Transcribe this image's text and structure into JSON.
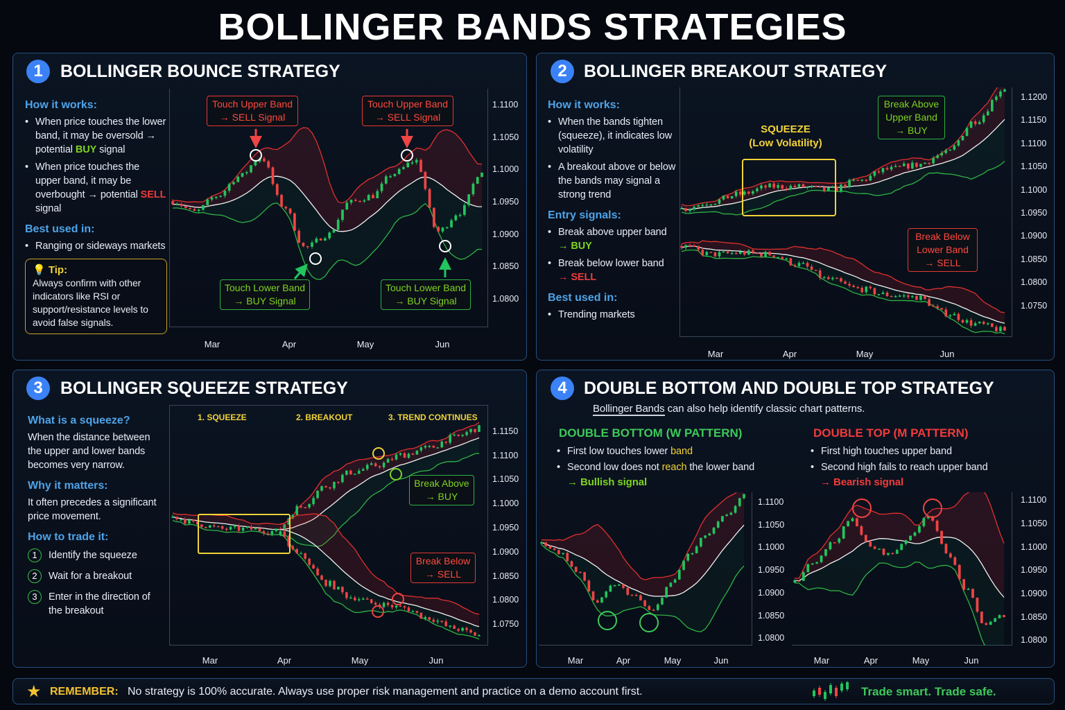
{
  "title": "BOLLINGER BANDS STRATEGIES",
  "colors": {
    "accent": "#3b82f6",
    "buy": "#22c55e",
    "sell": "#ef4444",
    "highlight": "#f2d338",
    "heading": "#4fa3e8"
  },
  "p1": {
    "num": "1",
    "title": "BOLLINGER BOUNCE STRATEGY",
    "how": "How it works:",
    "b1": {
      "a": "When price touches the lower band, it may be oversold → potential ",
      "sig": "BUY",
      "b": " signal"
    },
    "b2": {
      "a": "When price touches the upper band, it may be overbought → potential ",
      "sig": "SELL",
      "b": " signal"
    },
    "best": "Best used in:",
    "best1": "Ranging or sideways markets",
    "tip_label": "Tip:",
    "tip": "Always confirm with other indicators like RSI or support/resistance levels to avoid false signals.",
    "call_sell": [
      "Touch Upper Band",
      "→ SELL Signal"
    ],
    "call_buy": [
      "Touch Lower Band",
      "→ BUY Signal"
    ]
  },
  "p2": {
    "num": "2",
    "title": "BOLLINGER BREAKOUT STRATEGY",
    "how": "How it works:",
    "b1": "When the bands tighten (squeeze), it indicates low volatility",
    "b2": "A breakout above or below the bands may signal a strong trend",
    "entry": "Entry signals:",
    "e1": {
      "a": "Break above upper band",
      "sig": "→ BUY"
    },
    "e2": {
      "a": "Break below lower band",
      "sig": "→ SELL"
    },
    "best": "Best used in:",
    "best1": "Trending markets",
    "squeeze": [
      "SQUEEZE",
      "(Low Volatility)"
    ],
    "call_buy": [
      "Break Above",
      "Upper Band",
      "→ BUY"
    ],
    "call_sell": [
      "Break Below",
      "Lower Band",
      "→ SELL"
    ]
  },
  "p3": {
    "num": "3",
    "title": "BOLLINGER SQUEEZE STRATEGY",
    "what": "What is a squeeze?",
    "what_t": "When the distance between the upper and lower bands becomes very narrow.",
    "why": "Why it matters:",
    "why_t": "It often precedes a significant price movement.",
    "how": "How to trade it:",
    "steps": [
      {
        "n": "1",
        "t": "Identify the squeeze"
      },
      {
        "n": "2",
        "t": "Wait for a breakout"
      },
      {
        "n": "3",
        "t": "Enter in the direction of the breakout"
      }
    ],
    "phases": [
      "1. SQUEEZE",
      "2. BREAKOUT",
      "3. TREND CONTINUES"
    ],
    "call_buy": [
      "Break Above",
      "→ BUY"
    ],
    "call_sell": [
      "Break Below",
      "→ SELL"
    ]
  },
  "p4": {
    "num": "4",
    "title": "DOUBLE BOTTOM AND DOUBLE TOP STRATEGY",
    "intro_a": "Bollinger Bands",
    "intro_b": " can also help identify classic chart patterns.",
    "db": {
      "title": "DOUBLE BOTTOM (W PATTERN)",
      "l1a": "First low touches lower ",
      "l1b": "band",
      "l2a": "Second low does not ",
      "l2b": "reach",
      "l2c": " the lower band",
      "sig": "→ Bullish signal"
    },
    "dt": {
      "title": "DOUBLE TOP (M PATTERN)",
      "l1": "First high touches upper band",
      "l2": "Second high fails to reach upper band",
      "sig": "→ Bearish signal"
    }
  },
  "footer": {
    "label": "REMEMBER:",
    "text": "No strategy is 100% accurate. Always use proper risk management and practice on a demo account first.",
    "slogan": "Trade smart. Trade safe.",
    "icon": "star-icon"
  },
  "chart_data": [
    {
      "id": "bounce",
      "type": "candlestick",
      "ylim": [
        1.0757,
        1.1126
      ],
      "yticks": [
        "1.1100",
        "1.1050",
        "1.1000",
        "1.0950",
        "1.0900",
        "1.0850",
        "1.0800"
      ],
      "xticks": [
        "Mar",
        "Apr",
        "May",
        "Jun"
      ],
      "series": [
        {
          "price_path": [
            1.0952,
            1.0935,
            1.096,
            1.099,
            1.102,
            1.0945,
            1.088,
            1.09,
            1.095,
            1.096,
            1.0995,
            1.1015,
            1.0905,
            1.0935,
            1.1
          ]
        }
      ]
    },
    {
      "id": "breakout",
      "type": "candlestick",
      "ylim": [
        1.0684,
        1.1222
      ],
      "yticks": [
        "1.1200",
        "1.1150",
        "1.1100",
        "1.1050",
        "1.1000",
        "1.0950",
        "1.0900",
        "1.0850",
        "1.0800",
        "1.0750"
      ],
      "xticks": [
        "Mar",
        "Apr",
        "May",
        "Jun"
      ],
      "series": [
        {
          "price_path": [
            1.096,
            1.0975,
            1.0992,
            1.1008,
            1.1008,
            1.1,
            1.102,
            1.1045,
            1.1055,
            1.108,
            1.115,
            1.122
          ]
        },
        {
          "price_path": [
            1.088,
            1.0862,
            1.0865,
            1.0862,
            1.084,
            1.0808,
            1.0788,
            1.0775,
            1.077,
            1.0735,
            1.0712,
            1.0698
          ]
        }
      ]
    },
    {
      "id": "squeeze",
      "type": "candlestick",
      "ylim": [
        1.0707,
        1.1206
      ],
      "yticks": [
        "1.1150",
        "1.1100",
        "1.1050",
        "1.1000",
        "1.0950",
        "1.0900",
        "1.0850",
        "1.0800",
        "1.0750"
      ],
      "xticks": [
        "Mar",
        "Apr",
        "May",
        "Jun"
      ],
      "series": [
        {
          "price_path": [
            1.0975,
            1.096,
            1.095,
            1.095,
            1.0945,
            1.0996,
            1.1039,
            1.1068,
            1.1082,
            1.1104,
            1.1118,
            1.114,
            1.1159
          ]
        },
        {
          "price_path": [
            1.0975,
            1.096,
            1.095,
            1.095,
            1.0945,
            1.0895,
            1.0838,
            1.0809,
            1.0795,
            1.0787,
            1.0766,
            1.0744,
            1.073
          ]
        }
      ]
    },
    {
      "id": "double_bottom",
      "type": "candlestick",
      "ylim": [
        1.0785,
        1.1123
      ],
      "yticks": [
        "1.1100",
        "1.1050",
        "1.1000",
        "1.0950",
        "1.0900",
        "1.0850",
        "1.0800"
      ],
      "xticks": [
        "Mar",
        "Apr",
        "May",
        "Jun"
      ],
      "series": [
        {
          "price_path": [
            1.101,
            1.099,
            1.0945,
            1.088,
            1.092,
            1.0895,
            1.086,
            1.092,
            1.0985,
            1.103,
            1.107,
            1.1115
          ]
        }
      ]
    },
    {
      "id": "double_top",
      "type": "candlestick",
      "ylim": [
        1.079,
        1.1118
      ],
      "yticks": [
        "1.1100",
        "1.1050",
        "1.1000",
        "1.0950",
        "1.0900",
        "1.0850",
        "1.0800"
      ],
      "xticks": [
        "Mar",
        "Apr",
        "May",
        "Jun"
      ],
      "series": [
        {
          "price_path": [
            1.0925,
            1.097,
            1.101,
            1.106,
            1.1,
            1.0985,
            1.102,
            1.107,
            1.099,
            1.091,
            1.0835,
            1.0855
          ]
        }
      ]
    }
  ]
}
